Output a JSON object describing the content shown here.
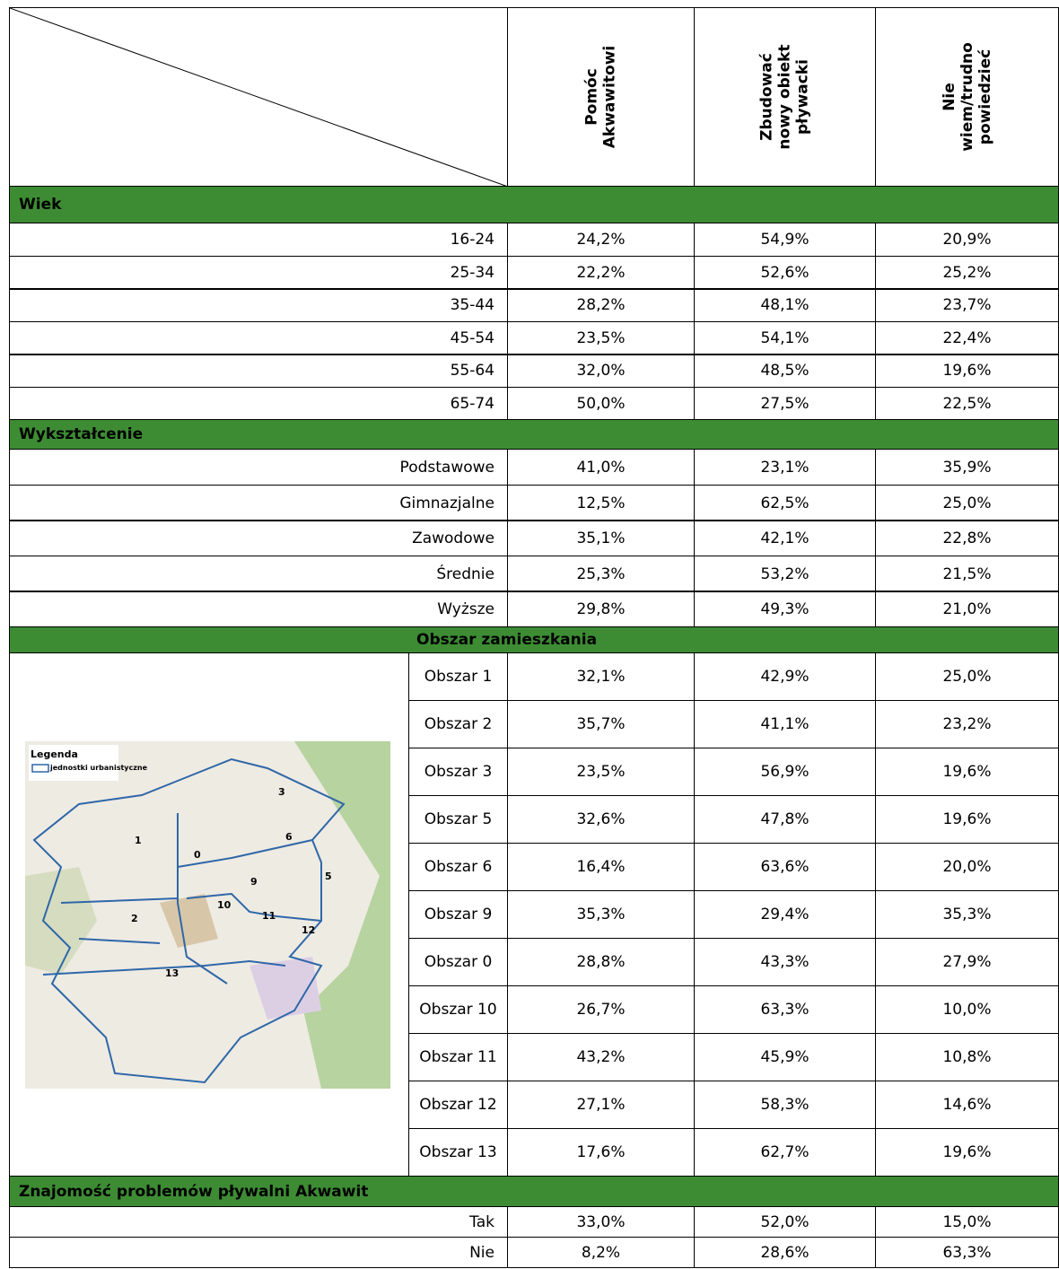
{
  "header": {
    "columns": [
      [
        "Pomóc",
        "Akwawitowi"
      ],
      [
        "Zbudować",
        "nowy obiekt",
        "pływacki"
      ],
      [
        "Nie",
        "wiem/trudno",
        "powiedzieć"
      ]
    ]
  },
  "sections": [
    {
      "title": "Wiek",
      "rows": [
        {
          "label": "16-24",
          "values": [
            "24,2%",
            "54,9%",
            "20,9%"
          ]
        },
        {
          "label": "25-34",
          "values": [
            "22,2%",
            "52,6%",
            "25,2%"
          ]
        },
        {
          "label": "35-44",
          "values": [
            "28,2%",
            "48,1%",
            "23,7%"
          ]
        },
        {
          "label": "45-54",
          "values": [
            "23,5%",
            "54,1%",
            "22,4%"
          ]
        },
        {
          "label": "55-64",
          "values": [
            "32,0%",
            "48,5%",
            "19,6%"
          ]
        },
        {
          "label": "65-74",
          "values": [
            "50,0%",
            "27,5%",
            "22,5%"
          ]
        }
      ]
    },
    {
      "title": "Wykształcenie",
      "rows": [
        {
          "label": "Podstawowe",
          "values": [
            "41,0%",
            "23,1%",
            "35,9%"
          ]
        },
        {
          "label": "Gimnazjalne",
          "values": [
            "12,5%",
            "62,5%",
            "25,0%"
          ]
        },
        {
          "label": "Zawodowe",
          "values": [
            "35,1%",
            "42,1%",
            "22,8%"
          ]
        },
        {
          "label": "Średnie",
          "values": [
            "25,3%",
            "53,2%",
            "21,5%"
          ]
        },
        {
          "label": "Wyższe",
          "values": [
            "29,8%",
            "49,3%",
            "21,0%"
          ]
        }
      ]
    },
    {
      "title": "Obszar zamieszkania",
      "rows": [
        {
          "label": "Obszar 1",
          "values": [
            "32,1%",
            "42,9%",
            "25,0%"
          ]
        },
        {
          "label": "Obszar 2",
          "values": [
            "35,7%",
            "41,1%",
            "23,2%"
          ]
        },
        {
          "label": "Obszar 3",
          "values": [
            "23,5%",
            "56,9%",
            "19,6%"
          ]
        },
        {
          "label": "Obszar 5",
          "values": [
            "32,6%",
            "47,8%",
            "19,6%"
          ]
        },
        {
          "label": "Obszar 6",
          "values": [
            "16,4%",
            "63,6%",
            "20,0%"
          ]
        },
        {
          "label": "Obszar 9",
          "values": [
            "35,3%",
            "29,4%",
            "35,3%"
          ]
        },
        {
          "label": "Obszar 0",
          "values": [
            "28,8%",
            "43,3%",
            "27,9%"
          ]
        },
        {
          "label": "Obszar 10",
          "values": [
            "26,7%",
            "63,3%",
            "10,0%"
          ]
        },
        {
          "label": "Obszar 11",
          "values": [
            "43,2%",
            "45,9%",
            "10,8%"
          ]
        },
        {
          "label": "Obszar 12",
          "values": [
            "27,1%",
            "58,3%",
            "14,6%"
          ]
        },
        {
          "label": "Obszar 13",
          "values": [
            "17,6%",
            "62,7%",
            "19,6%"
          ]
        }
      ]
    },
    {
      "title": "Znajomość problemów pływalni Akwawit",
      "rows": [
        {
          "label": "Tak",
          "values": [
            "33,0%",
            "52,0%",
            "15,0%"
          ]
        },
        {
          "label": "Nie",
          "values": [
            "8,2%",
            "28,6%",
            "63,3%"
          ]
        }
      ]
    }
  ],
  "map": {
    "legend_title": "Legenda",
    "legend_item": "jednostki urbanistyczne",
    "labels": [
      "3",
      "1",
      "0",
      "6",
      "5",
      "9",
      "2",
      "10",
      "11",
      "12",
      "13"
    ]
  }
}
